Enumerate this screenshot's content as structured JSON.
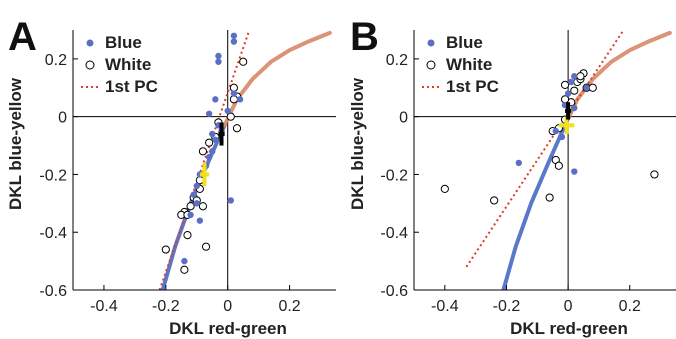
{
  "colors": {
    "blue_points": "#5b6fc4",
    "blue_curve": "#5b78c8",
    "white_curve": "#c8a080",
    "white_curve_orange": "#e07858",
    "pc_line": "#e03a2a",
    "mean_marker": "#f2e11a",
    "mean_marker_white": "#000000",
    "axis": "#000000"
  },
  "chart_data": [
    {
      "panel": "A",
      "type": "scatter",
      "xlabel": "DKL red-green",
      "ylabel": "DKL blue-yellow",
      "xlim": [
        -0.5,
        0.35
      ],
      "ylim": [
        -0.6,
        0.3
      ],
      "xticks": [
        "-0.4",
        "-0.2",
        "0",
        "0.2"
      ],
      "xtick_values": [
        -0.4,
        -0.2,
        0,
        0.2
      ],
      "yticks": [
        "0.2",
        "0",
        "-0.2",
        "-0.4",
        "-0.6"
      ],
      "ytick_values": [
        0.2,
        0,
        -0.2,
        -0.4,
        -0.6
      ],
      "legend": [
        "Blue",
        "White",
        "1st PC"
      ],
      "legend_position": "top-left",
      "series": [
        {
          "name": "Blue",
          "marker": "filled-circle",
          "points": [
            [
              0.02,
              0.28
            ],
            [
              0.02,
              0.26
            ],
            [
              -0.03,
              0.21
            ],
            [
              -0.03,
              0.19
            ],
            [
              -0.06,
              0.01
            ],
            [
              0.0,
              0.02
            ],
            [
              0.02,
              0.08
            ],
            [
              0.04,
              0.06
            ],
            [
              -0.04,
              0.06
            ],
            [
              -0.05,
              -0.06
            ],
            [
              -0.04,
              -0.08
            ],
            [
              -0.05,
              -0.12
            ],
            [
              -0.06,
              -0.14
            ],
            [
              -0.07,
              -0.17
            ],
            [
              -0.09,
              -0.2
            ],
            [
              -0.1,
              -0.24
            ],
            [
              -0.11,
              -0.27
            ],
            [
              -0.1,
              -0.3
            ],
            [
              -0.12,
              -0.34
            ],
            [
              -0.09,
              -0.36
            ],
            [
              -0.14,
              -0.5
            ],
            [
              0.01,
              -0.29
            ],
            [
              -0.02,
              -0.05
            ],
            [
              -0.03,
              -0.03
            ]
          ]
        },
        {
          "name": "White",
          "marker": "open-circle",
          "points": [
            [
              0.05,
              0.19
            ],
            [
              0.02,
              0.1
            ],
            [
              0.03,
              0.07
            ],
            [
              0.02,
              0.06
            ],
            [
              0.01,
              0.0
            ],
            [
              0.03,
              -0.04
            ],
            [
              -0.03,
              -0.02
            ],
            [
              -0.04,
              -0.07
            ],
            [
              -0.06,
              -0.09
            ],
            [
              -0.08,
              -0.12
            ],
            [
              -0.09,
              -0.22
            ],
            [
              -0.09,
              -0.25
            ],
            [
              -0.11,
              -0.28
            ],
            [
              -0.1,
              -0.29
            ],
            [
              -0.08,
              -0.31
            ],
            [
              -0.12,
              -0.31
            ],
            [
              -0.14,
              -0.33
            ],
            [
              -0.15,
              -0.34
            ],
            [
              -0.13,
              -0.34
            ],
            [
              -0.13,
              -0.41
            ],
            [
              -0.07,
              -0.45
            ],
            [
              -0.2,
              -0.46
            ],
            [
              -0.14,
              -0.53
            ]
          ]
        },
        {
          "name": "1st PC",
          "line": "dotted",
          "points": [
            [
              -0.22,
              -0.6
            ],
            [
              0.07,
              0.3
            ]
          ]
        }
      ],
      "curve": {
        "name": "daylight-locus",
        "points": [
          [
            -0.21,
            -0.6
          ],
          [
            -0.17,
            -0.45
          ],
          [
            -0.12,
            -0.3
          ],
          [
            -0.06,
            -0.15
          ],
          [
            -0.01,
            -0.03
          ],
          [
            0.03,
            0.06
          ],
          [
            0.08,
            0.13
          ],
          [
            0.14,
            0.19
          ],
          [
            0.2,
            0.23
          ],
          [
            0.26,
            0.26
          ],
          [
            0.33,
            0.29
          ]
        ]
      },
      "mean_markers": [
        {
          "color": "yellow",
          "x": -0.075,
          "y": -0.2,
          "xerr": 0.015,
          "yerr": 0.04
        },
        {
          "color": "black",
          "x": -0.02,
          "y": -0.06,
          "xerr": 0.01,
          "yerr": 0.04
        }
      ]
    },
    {
      "panel": "B",
      "type": "scatter",
      "xlabel": "DKL red-green",
      "ylabel": "DKL blue-yellow",
      "xlim": [
        -0.5,
        0.35
      ],
      "ylim": [
        -0.6,
        0.3
      ],
      "xticks": [
        "-0.4",
        "-0.2",
        "0",
        "0.2"
      ],
      "xtick_values": [
        -0.4,
        -0.2,
        0,
        0.2
      ],
      "yticks": [
        "0.2",
        "0",
        "-0.2",
        "-0.4",
        "-0.6"
      ],
      "ytick_values": [
        0.2,
        0,
        -0.2,
        -0.4,
        -0.6
      ],
      "legend": [
        "Blue",
        "White",
        "1st PC"
      ],
      "legend_position": "top-left",
      "series": [
        {
          "name": "Blue",
          "marker": "filled-circle",
          "points": [
            [
              0.02,
              0.14
            ],
            [
              0.01,
              0.12
            ],
            [
              0.06,
              0.1
            ],
            [
              0.0,
              0.08
            ],
            [
              -0.01,
              0.04
            ],
            [
              0.0,
              0.02
            ],
            [
              0.02,
              0.03
            ],
            [
              0.02,
              -0.19
            ],
            [
              -0.16,
              -0.16
            ],
            [
              -0.04,
              -0.05
            ],
            [
              -0.02,
              -0.07
            ],
            [
              -0.01,
              -0.03
            ]
          ]
        },
        {
          "name": "White",
          "marker": "open-circle",
          "points": [
            [
              -0.01,
              0.11
            ],
            [
              0.03,
              0.12
            ],
            [
              0.04,
              0.13
            ],
            [
              0.05,
              0.15
            ],
            [
              0.04,
              0.14
            ],
            [
              0.06,
              0.1
            ],
            [
              0.08,
              0.1
            ],
            [
              0.02,
              0.09
            ],
            [
              0.01,
              0.05
            ],
            [
              -0.01,
              0.06
            ],
            [
              -0.03,
              -0.04
            ],
            [
              -0.05,
              -0.05
            ],
            [
              -0.04,
              -0.15
            ],
            [
              -0.03,
              -0.17
            ],
            [
              -0.06,
              -0.28
            ],
            [
              -0.24,
              -0.29
            ],
            [
              -0.4,
              -0.25
            ],
            [
              0.28,
              -0.2
            ],
            [
              -0.01,
              -0.01
            ]
          ]
        },
        {
          "name": "1st PC",
          "line": "dotted",
          "points": [
            [
              -0.33,
              -0.52
            ],
            [
              0.18,
              0.3
            ]
          ]
        }
      ],
      "curve": {
        "name": "daylight-locus",
        "points": [
          [
            -0.21,
            -0.6
          ],
          [
            -0.17,
            -0.45
          ],
          [
            -0.12,
            -0.3
          ],
          [
            -0.06,
            -0.15
          ],
          [
            -0.01,
            -0.03
          ],
          [
            0.03,
            0.06
          ],
          [
            0.08,
            0.13
          ],
          [
            0.14,
            0.19
          ],
          [
            0.2,
            0.23
          ],
          [
            0.26,
            0.26
          ],
          [
            0.33,
            0.29
          ]
        ]
      },
      "mean_markers": [
        {
          "color": "yellow",
          "x": -0.005,
          "y": -0.03,
          "xerr": 0.025,
          "yerr": 0.03
        },
        {
          "color": "black",
          "x": 0.0,
          "y": 0.02,
          "xerr": 0.01,
          "yerr": 0.03
        }
      ]
    }
  ]
}
